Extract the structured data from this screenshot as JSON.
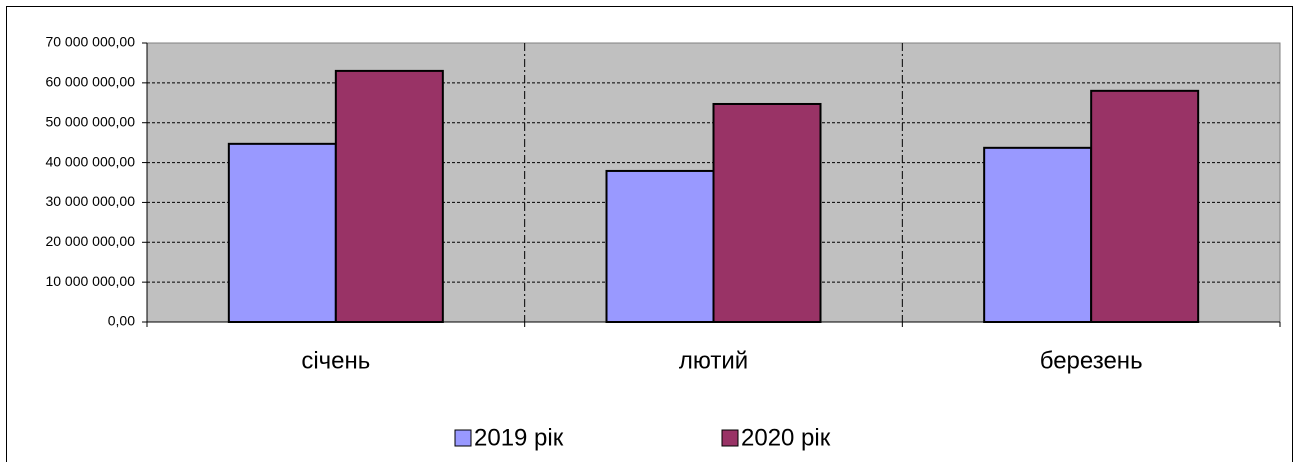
{
  "chart_data": {
    "type": "bar",
    "categories": [
      "січень",
      "лютий",
      "березень"
    ],
    "series": [
      {
        "name": "2019 рік",
        "color": "#9999ff",
        "values": [
          44700000,
          37900000,
          43700000
        ]
      },
      {
        "name": "2020 рік",
        "color": "#993366",
        "values": [
          63000000,
          54700000,
          58000000
        ]
      }
    ],
    "ylim": [
      0,
      70000000
    ],
    "yticks": [
      {
        "value": 0,
        "label": "0,00"
      },
      {
        "value": 10000000,
        "label": "10 000 000,00"
      },
      {
        "value": 20000000,
        "label": "20 000 000,00"
      },
      {
        "value": 30000000,
        "label": "30 000 000,00"
      },
      {
        "value": 40000000,
        "label": "40 000 000,00"
      },
      {
        "value": 50000000,
        "label": "50 000 000,00"
      },
      {
        "value": 60000000,
        "label": "60 000 000,00"
      },
      {
        "value": 70000000,
        "label": "70 000 000,00"
      }
    ],
    "grid": true,
    "legend": "bottom",
    "plot_background": "#c0c0c0"
  }
}
